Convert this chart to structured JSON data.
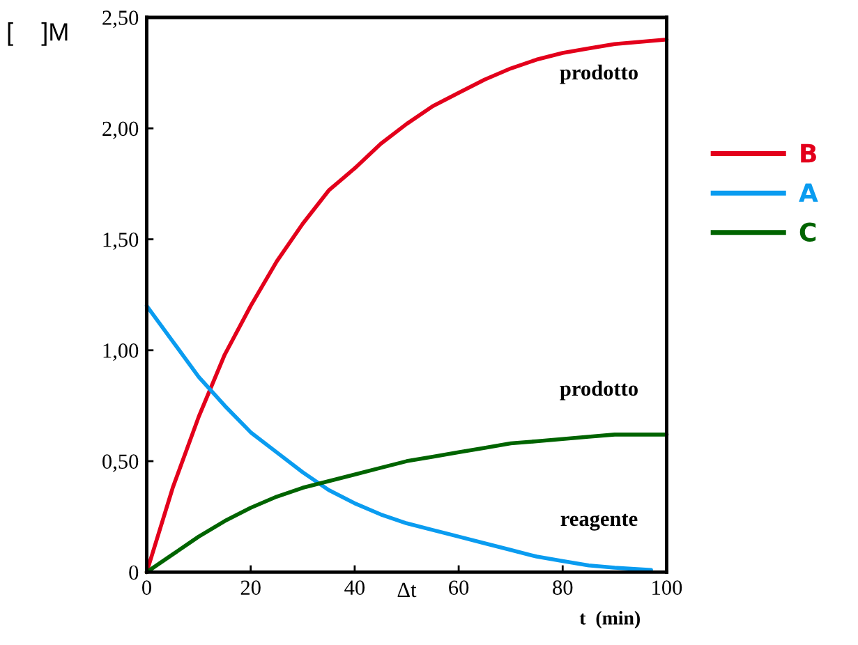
{
  "chart_data": {
    "type": "line",
    "xlabel": "t  (min)",
    "ylabel": "[    ]M",
    "x": [
      0,
      5,
      10,
      15,
      20,
      25,
      30,
      35,
      40,
      45,
      50,
      55,
      60,
      65,
      70,
      75,
      80,
      85,
      90,
      95,
      100
    ],
    "series": [
      {
        "name": "B",
        "color": "#e3001b",
        "values": [
          0,
          0.38,
          0.7,
          0.98,
          1.2,
          1.4,
          1.57,
          1.72,
          1.82,
          1.93,
          2.02,
          2.1,
          2.16,
          2.22,
          2.27,
          2.31,
          2.34,
          2.36,
          2.38,
          2.39,
          2.4
        ]
      },
      {
        "name": "A",
        "color": "#0a9cf0",
        "x": [
          0,
          5,
          10,
          15,
          20,
          25,
          30,
          35,
          40,
          45,
          50,
          55,
          60,
          65,
          70,
          75,
          80,
          85,
          90,
          97
        ],
        "values": [
          1.2,
          1.04,
          0.88,
          0.75,
          0.63,
          0.54,
          0.45,
          0.37,
          0.31,
          0.26,
          0.22,
          0.19,
          0.16,
          0.13,
          0.1,
          0.07,
          0.05,
          0.03,
          0.02,
          0.01
        ]
      },
      {
        "name": "C",
        "color": "#006400",
        "values": [
          0,
          0.08,
          0.16,
          0.23,
          0.29,
          0.34,
          0.38,
          0.41,
          0.44,
          0.47,
          0.5,
          0.52,
          0.54,
          0.56,
          0.58,
          0.59,
          0.6,
          0.61,
          0.62,
          0.62,
          0.62
        ]
      }
    ],
    "xlim": [
      0,
      100
    ],
    "ylim": [
      0,
      2.5
    ],
    "xticks": [
      0,
      20,
      40,
      60,
      80,
      100
    ],
    "yticks": [
      {
        "value": 0,
        "label": "0"
      },
      {
        "value": 0.5,
        "label": "0,50"
      },
      {
        "value": 1.0,
        "label": "1,00"
      },
      {
        "value": 1.5,
        "label": "1,50"
      },
      {
        "value": 2.0,
        "label": "2,00"
      },
      {
        "value": 2.5,
        "label": "2,50"
      }
    ],
    "annotations": [
      "prodotto",
      "prodotto",
      "reagente",
      "Δt"
    ],
    "legend": "right",
    "grid": false,
    "marker": "none",
    "line_style": "solid"
  }
}
